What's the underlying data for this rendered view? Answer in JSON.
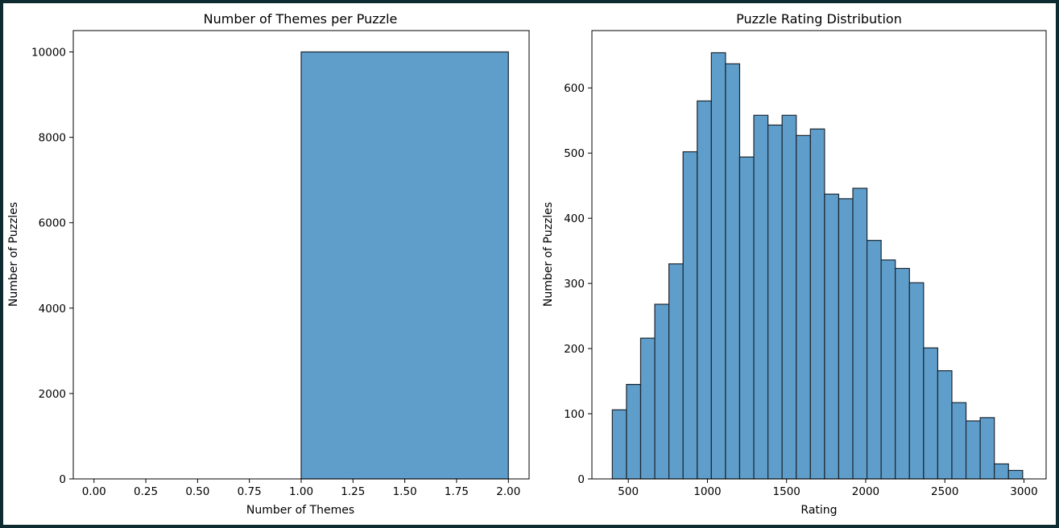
{
  "chart_data": [
    {
      "type": "bar",
      "title": "Number of Themes per Puzzle",
      "xlabel": "Number of Themes",
      "ylabel": "Number of Puzzles",
      "xlim": [
        -0.1,
        2.1
      ],
      "ylim": [
        0,
        10500
      ],
      "xticks": [
        0.0,
        0.25,
        0.5,
        0.75,
        1.0,
        1.25,
        1.5,
        1.75,
        2.0
      ],
      "xtick_labels": [
        "0.00",
        "0.25",
        "0.50",
        "0.75",
        "1.00",
        "1.25",
        "1.50",
        "1.75",
        "2.00"
      ],
      "yticks": [
        0,
        2000,
        4000,
        6000,
        8000,
        10000
      ],
      "ytick_labels": [
        "0",
        "2000",
        "4000",
        "6000",
        "8000",
        "10000"
      ],
      "bins": [
        {
          "start": 0.0,
          "end": 1.0,
          "value": 0
        },
        {
          "start": 1.0,
          "end": 2.0,
          "value": 10000
        }
      ],
      "bar_color": "#5f9ecb",
      "grid": false
    },
    {
      "type": "bar",
      "title": "Puzzle Rating Distribution",
      "xlabel": "Rating",
      "ylabel": "Number of Puzzles",
      "xlim": [
        270,
        3140
      ],
      "ylim": [
        0,
        688
      ],
      "xticks": [
        500,
        1000,
        1500,
        2000,
        2500,
        3000
      ],
      "xtick_labels": [
        "500",
        "1000",
        "1500",
        "2000",
        "2500",
        "3000"
      ],
      "yticks": [
        0,
        100,
        200,
        300,
        400,
        500,
        600
      ],
      "ytick_labels": [
        "0",
        "100",
        "200",
        "300",
        "400",
        "500",
        "600"
      ],
      "bin_start": 399,
      "bin_width": 89.4,
      "values": [
        106,
        145,
        216,
        268,
        330,
        502,
        580,
        654,
        637,
        494,
        558,
        543,
        558,
        527,
        537,
        437,
        430,
        446,
        366,
        336,
        323,
        301,
        201,
        166,
        117,
        89,
        94,
        23,
        13,
        0
      ],
      "bar_color": "#5f9ecb",
      "grid": false
    }
  ]
}
